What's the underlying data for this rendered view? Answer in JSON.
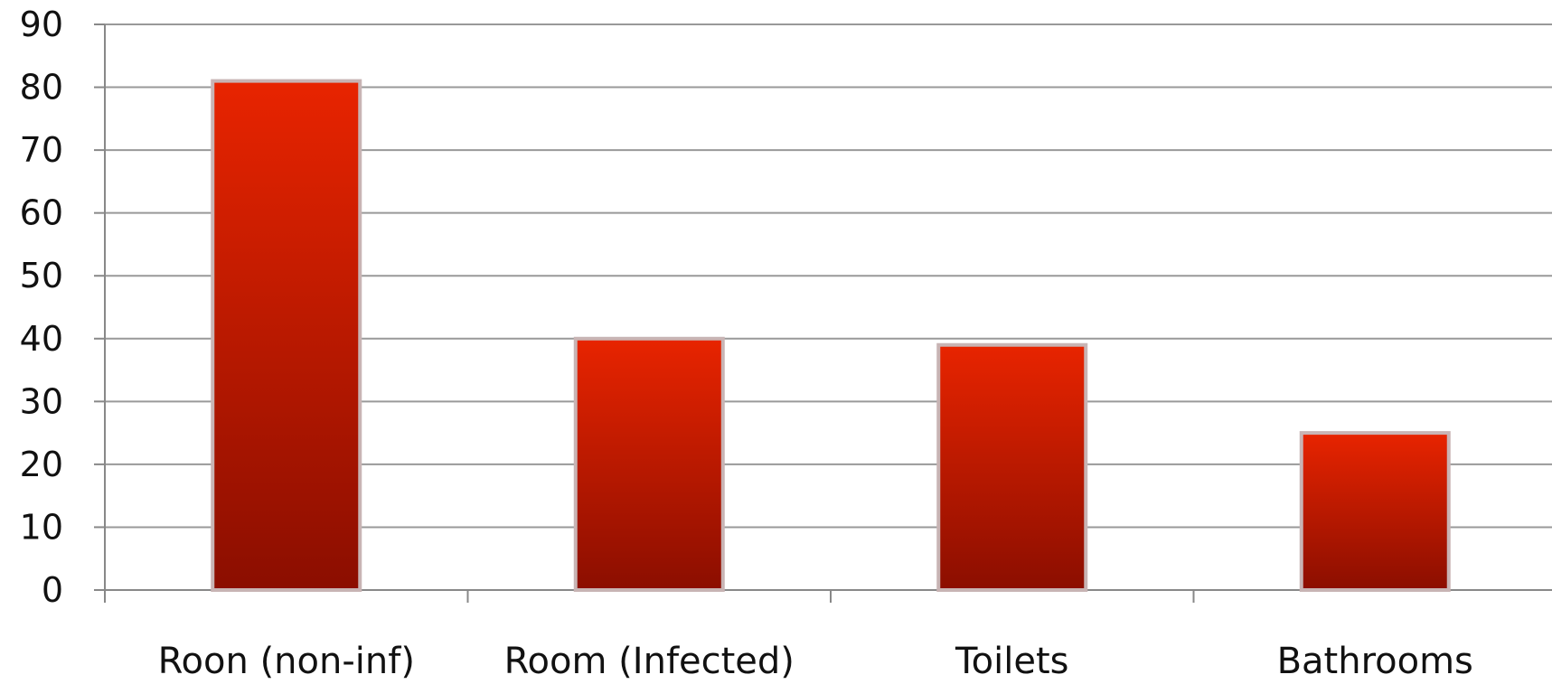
{
  "chart_data": {
    "type": "bar",
    "categories": [
      "Roon (non-inf)",
      "Room (Infected)",
      "Toilets",
      "Bathrooms"
    ],
    "values": [
      81,
      40,
      39,
      25
    ],
    "ylim": [
      0,
      90
    ],
    "yticks": [
      0,
      10,
      20,
      30,
      40,
      50,
      60,
      70,
      80,
      90
    ],
    "grid": true,
    "legend": "none",
    "title": "",
    "xlabel": "",
    "ylabel": ""
  },
  "colors": {
    "bar_top": "#e82400",
    "bar_bottom": "#8b0e00",
    "bar_outline": "#c8b4b4",
    "gridline": "#999999",
    "axis": "#888888"
  }
}
